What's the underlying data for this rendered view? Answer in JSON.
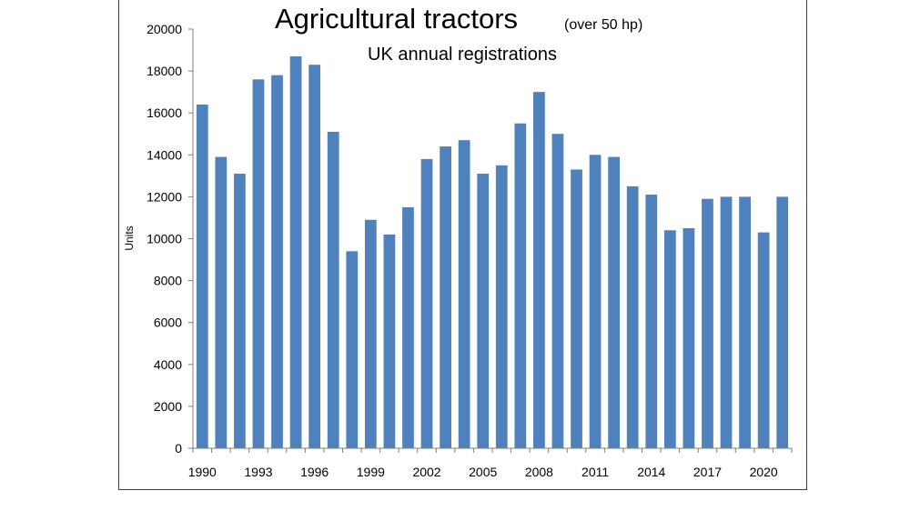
{
  "chart_data": {
    "type": "bar",
    "title": "Agricultural tractors",
    "title_note": "(over 50 hp)",
    "subtitle": "UK annual registrations",
    "xlabel": "",
    "ylabel": "Units",
    "ylim": [
      0,
      20000
    ],
    "y_ticks": [
      0,
      2000,
      4000,
      6000,
      8000,
      10000,
      12000,
      14000,
      16000,
      18000,
      20000
    ],
    "x_tick_labels": [
      "1990",
      "1993",
      "1996",
      "1999",
      "2002",
      "2005",
      "2008",
      "2011",
      "2014",
      "2017",
      "2020"
    ],
    "grid": false,
    "legend": "none",
    "bar_color": "#4f81bd",
    "categories": [
      "1990",
      "1991",
      "1992",
      "1993",
      "1994",
      "1995",
      "1996",
      "1997",
      "1998",
      "1999",
      "2000",
      "2001",
      "2002",
      "2003",
      "2004",
      "2005",
      "2006",
      "2007",
      "2008",
      "2009",
      "2010",
      "2011",
      "2012",
      "2013",
      "2014",
      "2015",
      "2016",
      "2017",
      "2018",
      "2019",
      "2020",
      "2021"
    ],
    "values": [
      16400,
      13900,
      13100,
      17600,
      17800,
      18700,
      18300,
      15100,
      9400,
      10900,
      10200,
      11500,
      13800,
      14400,
      14700,
      13100,
      13500,
      15500,
      17000,
      15000,
      13300,
      14000,
      13900,
      12500,
      12100,
      10400,
      10500,
      11900,
      12000,
      12000,
      10300,
      12000
    ]
  }
}
